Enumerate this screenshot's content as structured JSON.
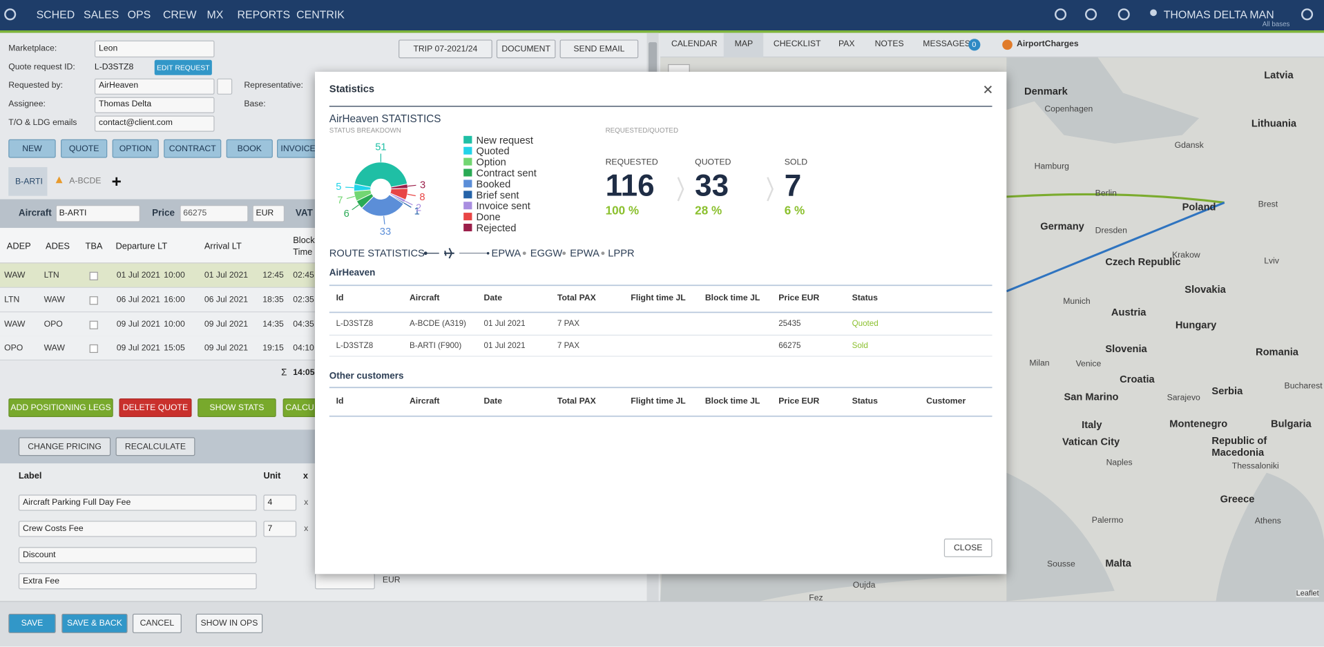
{
  "nav": {
    "menu": [
      "SCHED",
      "SALES",
      "OPS",
      "CREW",
      "MX",
      "REPORTS",
      "CENTRIK"
    ],
    "user": "THOMAS DELTA",
    "base": "MAN",
    "base_sub": "All bases"
  },
  "form": {
    "marketplace_label": "Marketplace:",
    "marketplace": "Leon",
    "quote_id_label": "Quote request ID:",
    "quote_id": "L-D3STZ8",
    "edit_request": "EDIT REQUEST",
    "requested_by_label": "Requested by:",
    "requested_by": "AirHeaven",
    "representative_label": "Representative:",
    "assignee_label": "Assignee:",
    "assignee": "Thomas Delta",
    "base_label": "Base:",
    "emails_label": "T/O & LDG emails",
    "email": "contact@client.com"
  },
  "top_buttons": [
    "TRIP 07-2021/24",
    "DOCUMENT",
    "SEND EMAIL"
  ],
  "status_buttons": [
    "NEW",
    "QUOTE",
    "OPTION",
    "CONTRACT",
    "BOOK",
    "INVOICE"
  ],
  "tabs": [
    "B-ARTI",
    "A-BCDE"
  ],
  "aircraft_row": {
    "aircraft_label": "Aircraft",
    "aircraft": "B-ARTI",
    "price_label": "Price",
    "price": "66275",
    "currency": "EUR",
    "vat_label": "VAT"
  },
  "legs": {
    "columns": [
      "ADEP",
      "ADES",
      "TBA",
      "Departure LT",
      "Arrival LT",
      "Block",
      "Time"
    ],
    "rows": [
      [
        "WAW",
        "LTN",
        "01 Jul 2021",
        "10:00",
        "01 Jul 2021",
        "12:45",
        "02:45"
      ],
      [
        "LTN",
        "WAW",
        "06 Jul 2021",
        "16:00",
        "06 Jul 2021",
        "18:35",
        "02:35"
      ],
      [
        "WAW",
        "OPO",
        "09 Jul 2021",
        "10:00",
        "09 Jul 2021",
        "14:35",
        "04:35"
      ],
      [
        "OPO",
        "WAW",
        "09 Jul 2021",
        "15:05",
        "09 Jul 2021",
        "19:15",
        "04:10"
      ]
    ],
    "total_symbol": "Σ",
    "total": "14:05"
  },
  "actions": [
    "ADD POSITIONING LEGS",
    "DELETE QUOTE",
    "SHOW STATS",
    "CALCU"
  ],
  "pricing": {
    "buttons": [
      "CHANGE PRICING",
      "RECALCULATE"
    ],
    "columns": [
      "Label",
      "Unit",
      "x"
    ],
    "rows": [
      [
        "Aircraft Parking Full Day Fee",
        "4",
        "x"
      ],
      [
        "Crew Costs Fee",
        "7",
        "x"
      ],
      [
        "Discount"
      ],
      [
        "Extra Fee"
      ]
    ],
    "currency": "EUR"
  },
  "footer": [
    "SAVE",
    "SAVE & BACK",
    "CANCEL",
    "SHOW IN OPS"
  ],
  "right_tabs": [
    "CALENDAR",
    "MAP",
    "CHECKLIST",
    "PAX",
    "NOTES",
    "MESSAGES"
  ],
  "messages_count": "0",
  "airport_charges": "AirportCharges",
  "map": {
    "countries": [
      "Latvia",
      "Denmark",
      "Lithuania",
      "Poland",
      "Germany",
      "Czech Republic",
      "Slovakia",
      "Austria",
      "Hungary",
      "Slovenia",
      "Romania",
      "Croatia",
      "Serbia",
      "San Marino",
      "Montenegro",
      "Bulgaria",
      "Italy",
      "Vatican City",
      "Republic of",
      "Macedonia",
      "Greece",
      "Malta"
    ],
    "cities": [
      "Copenhagen",
      "Gdansk",
      "Hamburg",
      "Berlin",
      "Brest",
      "Dresden",
      "Krakow",
      "Lviv",
      "Munich",
      "Milan",
      "Venice",
      "Bucharest",
      "Sarajevo",
      "Thessaloniki",
      "Naples",
      "Palermo",
      "Athens",
      "Sousse",
      "Oujda",
      "Fez"
    ],
    "attribution": "Leaflet"
  },
  "modal": {
    "title": "Statistics",
    "requested_quoted": "REQUESTED/QUOTED",
    "funnel": [
      {
        "label": "REQUESTED",
        "value": "116",
        "pct": "100 %"
      },
      {
        "label": "QUOTED",
        "value": "33",
        "pct": "28 %"
      },
      {
        "label": "SOLD",
        "value": "7",
        "pct": "6 %"
      }
    ],
    "route_title": "ROUTE STATISTICS",
    "route": [
      "EPWA",
      "EGGW",
      "EPWA",
      "LPPR"
    ],
    "client_section": "AirHeaven",
    "columns": [
      "Id",
      "Aircraft",
      "Date",
      "Total PAX",
      "Flight time JL",
      "Block time JL",
      "Price EUR",
      "Status"
    ],
    "rows": [
      [
        "L-D3STZ8",
        "A-BCDE (A319)",
        "01 Jul 2021",
        "7 PAX",
        "",
        "",
        "25435",
        "Quoted"
      ],
      [
        "L-D3STZ8",
        "B-ARTI (F900)",
        "01 Jul 2021",
        "7 PAX",
        "",
        "",
        "66275",
        "Sold"
      ]
    ],
    "other_section": "Other customers",
    "other_columns": [
      "Id",
      "Aircraft",
      "Date",
      "Total PAX",
      "Flight time JL",
      "Block time JL",
      "Price EUR",
      "Status",
      "Customer"
    ],
    "close": "CLOSE"
  },
  "chart_data": {
    "type": "pie",
    "title": "AirHeaven STATISTICS",
    "subtitle": "STATUS BREAKDOWN",
    "donut": true,
    "categories": [
      "New request",
      "Quoted",
      "Option",
      "Contract sent",
      "Booked",
      "Brief sent",
      "Invoice sent",
      "Done",
      "Rejected"
    ],
    "values": [
      51,
      5,
      7,
      6,
      33,
      1,
      2,
      8,
      3
    ],
    "colors": [
      "#1fbfa5",
      "#22d3e8",
      "#72d672",
      "#2aaa55",
      "#5b8ed8",
      "#2563a8",
      "#a98ee0",
      "#e84545",
      "#9b1f4a"
    ]
  }
}
